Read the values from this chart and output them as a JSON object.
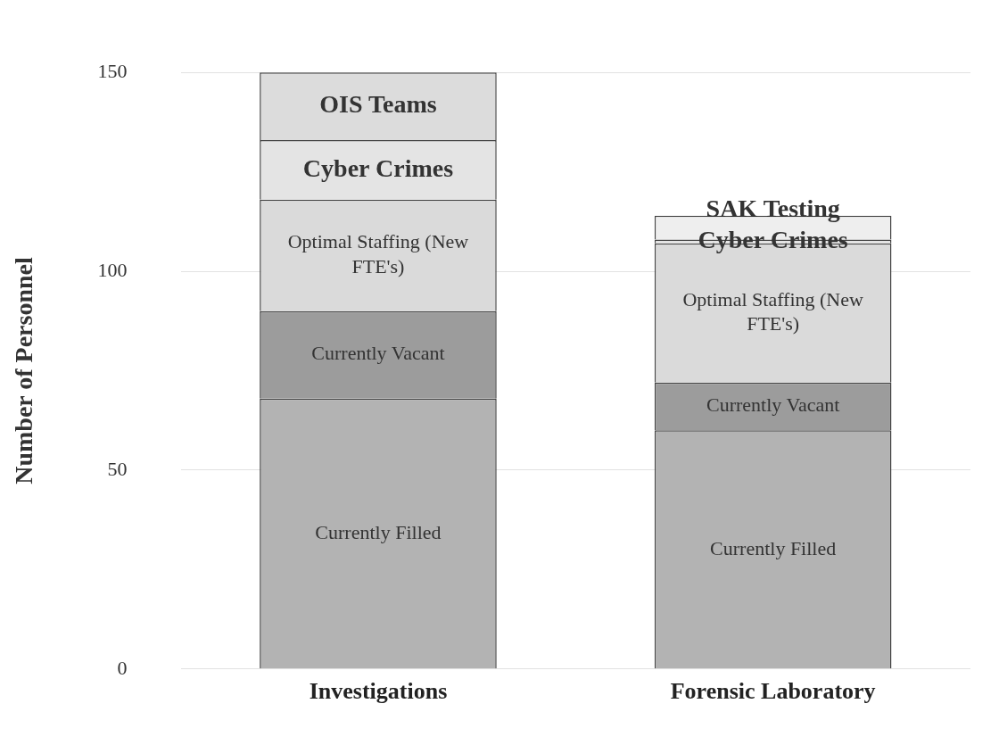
{
  "chart_data": {
    "type": "bar",
    "stacked": true,
    "ylabel": "Number of Personnel",
    "categories": [
      "Investigations",
      "Forensic Laboratory"
    ],
    "series": [
      {
        "name": "Currently Filled",
        "color": "#b3b3b3",
        "values": [
          68,
          60
        ]
      },
      {
        "name": "Currently Vacant",
        "color": "#9c9c9c",
        "values": [
          22,
          12
        ]
      },
      {
        "name": "Optimal Staffing (New FTE's)",
        "color": "#dadada",
        "values": [
          28,
          35
        ]
      },
      {
        "name": "Cyber Crimes",
        "color": "#e4e4e4",
        "values": [
          15,
          1
        ]
      },
      {
        "name": "OIS Teams",
        "color": "#dcdcdc",
        "values": [
          17,
          null
        ]
      },
      {
        "name": "SAK Testing",
        "color": "#eeeeee",
        "values": [
          null,
          6
        ]
      }
    ],
    "ylim": [
      0,
      150
    ],
    "yticks": [
      0,
      50,
      100,
      150
    ],
    "grid": "y",
    "legend": false
  }
}
